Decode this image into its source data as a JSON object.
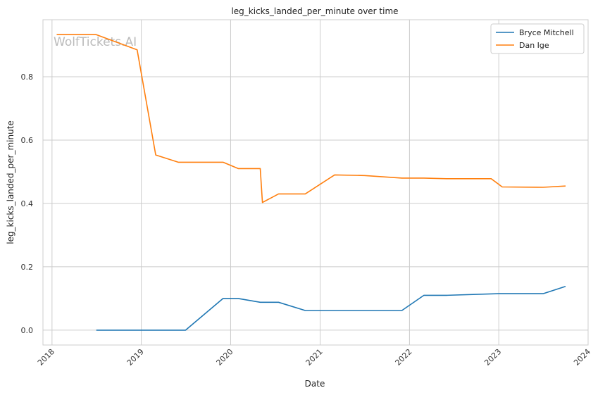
{
  "chart_data": {
    "type": "line",
    "title": "leg_kicks_landed_per_minute over time",
    "xlabel": "Date",
    "ylabel": "leg_kicks_landed_per_minute",
    "watermark": "WolfTickets.AI",
    "x_tick_labels": [
      "2018",
      "2019",
      "2020",
      "2021",
      "2022",
      "2023",
      "2024"
    ],
    "y_tick_labels": [
      "0.0",
      "0.2",
      "0.4",
      "0.6",
      "0.8"
    ],
    "y_ticks": [
      0.0,
      0.2,
      0.4,
      0.6,
      0.8
    ],
    "xlim": [
      "2017-11-25",
      "2024-01-01"
    ],
    "ylim": [
      -0.047,
      0.98
    ],
    "grid": true,
    "legend_position": "top-right",
    "series": [
      {
        "name": "Bryce Mitchell",
        "color": "#1f77b4",
        "x": [
          "2018-07-01",
          "2019-07-01",
          "2019-12-01",
          "2020-02-01",
          "2020-05-01",
          "2020-07-15",
          "2020-11-01",
          "2021-12-01",
          "2022-03-01",
          "2022-06-01",
          "2023-01-01",
          "2023-07-01",
          "2023-10-01"
        ],
        "y": [
          0.0,
          0.0,
          0.1,
          0.1,
          0.088,
          0.088,
          0.062,
          0.062,
          0.11,
          0.11,
          0.115,
          0.115,
          0.138
        ]
      },
      {
        "name": "Dan Ige",
        "color": "#ff7f0e",
        "x": [
          "2018-01-20",
          "2018-06-30",
          "2018-12-15",
          "2019-03-01",
          "2019-06-01",
          "2019-12-01",
          "2020-02-01",
          "2020-05-01",
          "2020-05-10",
          "2020-07-15",
          "2020-11-01",
          "2021-03-01",
          "2021-07-01",
          "2021-12-01",
          "2022-03-01",
          "2022-06-01",
          "2022-12-01",
          "2023-01-15",
          "2023-07-01",
          "2023-10-01"
        ],
        "y": [
          0.933,
          0.933,
          0.885,
          0.553,
          0.53,
          0.53,
          0.51,
          0.51,
          0.403,
          0.43,
          0.43,
          0.49,
          0.488,
          0.48,
          0.48,
          0.478,
          0.478,
          0.452,
          0.451,
          0.455
        ]
      }
    ]
  }
}
